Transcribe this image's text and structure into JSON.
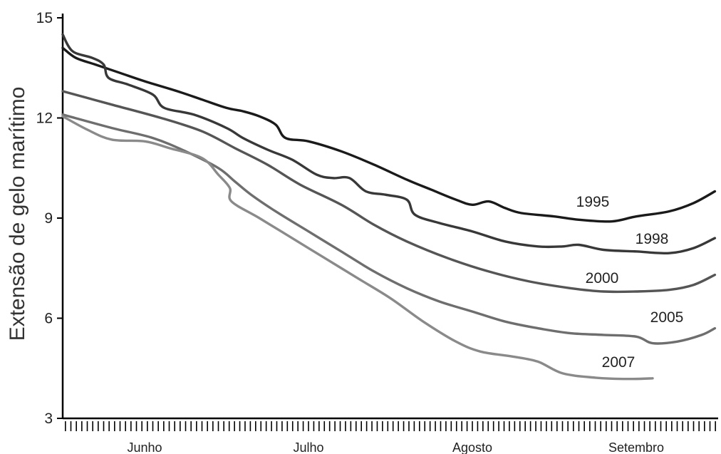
{
  "chart_data": {
    "type": "line",
    "title": "",
    "xlabel": "",
    "ylabel": "Extensão de gelo marítimo",
    "ylim": [
      3,
      15
    ],
    "yticks": [
      3,
      6,
      9,
      12,
      15
    ],
    "xlim": [
      0,
      4
    ],
    "x_categories": [
      "Junho",
      "Julho",
      "Agosto",
      "Setembro"
    ],
    "grid": false,
    "series": [
      {
        "name": "1995",
        "color": "#1a1a1a",
        "points": [
          [
            0.0,
            14.1
          ],
          [
            0.08,
            13.8
          ],
          [
            0.2,
            13.6
          ],
          [
            0.35,
            13.35
          ],
          [
            0.5,
            13.1
          ],
          [
            0.7,
            12.8
          ],
          [
            0.85,
            12.55
          ],
          [
            1.0,
            12.3
          ],
          [
            1.1,
            12.2
          ],
          [
            1.2,
            12.05
          ],
          [
            1.3,
            11.8
          ],
          [
            1.36,
            11.4
          ],
          [
            1.5,
            11.3
          ],
          [
            1.7,
            11.0
          ],
          [
            1.9,
            10.6
          ],
          [
            2.1,
            10.15
          ],
          [
            2.25,
            9.85
          ],
          [
            2.4,
            9.55
          ],
          [
            2.5,
            9.4
          ],
          [
            2.6,
            9.5
          ],
          [
            2.7,
            9.3
          ],
          [
            2.8,
            9.15
          ],
          [
            3.0,
            9.05
          ],
          [
            3.15,
            8.95
          ],
          [
            3.35,
            8.9
          ],
          [
            3.5,
            9.05
          ],
          [
            3.7,
            9.2
          ],
          [
            3.85,
            9.45
          ],
          [
            3.98,
            9.8
          ]
        ]
      },
      {
        "name": "1998",
        "color": "#383838",
        "points": [
          [
            0.0,
            14.5
          ],
          [
            0.06,
            14.0
          ],
          [
            0.18,
            13.8
          ],
          [
            0.25,
            13.6
          ],
          [
            0.28,
            13.2
          ],
          [
            0.4,
            13.0
          ],
          [
            0.55,
            12.7
          ],
          [
            0.62,
            12.3
          ],
          [
            0.8,
            12.1
          ],
          [
            1.0,
            11.7
          ],
          [
            1.1,
            11.4
          ],
          [
            1.25,
            11.05
          ],
          [
            1.4,
            10.75
          ],
          [
            1.55,
            10.3
          ],
          [
            1.65,
            10.2
          ],
          [
            1.75,
            10.2
          ],
          [
            1.85,
            9.8
          ],
          [
            1.97,
            9.7
          ],
          [
            2.1,
            9.55
          ],
          [
            2.15,
            9.1
          ],
          [
            2.3,
            8.85
          ],
          [
            2.5,
            8.6
          ],
          [
            2.7,
            8.3
          ],
          [
            2.9,
            8.15
          ],
          [
            3.05,
            8.15
          ],
          [
            3.15,
            8.2
          ],
          [
            3.3,
            8.05
          ],
          [
            3.5,
            8.0
          ],
          [
            3.7,
            7.95
          ],
          [
            3.85,
            8.1
          ],
          [
            3.98,
            8.4
          ]
        ]
      },
      {
        "name": "2000",
        "color": "#555555",
        "points": [
          [
            0.0,
            12.8
          ],
          [
            0.3,
            12.4
          ],
          [
            0.6,
            12.0
          ],
          [
            0.85,
            11.6
          ],
          [
            1.05,
            11.1
          ],
          [
            1.25,
            10.6
          ],
          [
            1.45,
            10.0
          ],
          [
            1.7,
            9.4
          ],
          [
            1.9,
            8.8
          ],
          [
            2.1,
            8.3
          ],
          [
            2.35,
            7.8
          ],
          [
            2.6,
            7.4
          ],
          [
            2.85,
            7.1
          ],
          [
            3.1,
            6.9
          ],
          [
            3.3,
            6.8
          ],
          [
            3.5,
            6.8
          ],
          [
            3.7,
            6.85
          ],
          [
            3.85,
            7.0
          ],
          [
            3.98,
            7.3
          ]
        ]
      },
      {
        "name": "2005",
        "color": "#6e6e6e",
        "points": [
          [
            0.0,
            12.1
          ],
          [
            0.3,
            11.7
          ],
          [
            0.55,
            11.4
          ],
          [
            0.75,
            11.0
          ],
          [
            0.95,
            10.5
          ],
          [
            1.05,
            10.1
          ],
          [
            1.15,
            9.7
          ],
          [
            1.3,
            9.2
          ],
          [
            1.5,
            8.6
          ],
          [
            1.7,
            8.0
          ],
          [
            1.9,
            7.4
          ],
          [
            2.1,
            6.9
          ],
          [
            2.3,
            6.5
          ],
          [
            2.5,
            6.2
          ],
          [
            2.7,
            5.9
          ],
          [
            2.9,
            5.7
          ],
          [
            3.1,
            5.55
          ],
          [
            3.3,
            5.5
          ],
          [
            3.5,
            5.45
          ],
          [
            3.6,
            5.25
          ],
          [
            3.75,
            5.3
          ],
          [
            3.9,
            5.5
          ],
          [
            3.98,
            5.7
          ]
        ]
      },
      {
        "name": "2007",
        "color": "#8a8a8a",
        "points": [
          [
            0.0,
            12.05
          ],
          [
            0.15,
            11.65
          ],
          [
            0.3,
            11.35
          ],
          [
            0.5,
            11.3
          ],
          [
            0.65,
            11.1
          ],
          [
            0.85,
            10.8
          ],
          [
            0.95,
            10.3
          ],
          [
            1.02,
            9.9
          ],
          [
            1.03,
            9.5
          ],
          [
            1.2,
            9.0
          ],
          [
            1.4,
            8.4
          ],
          [
            1.6,
            7.8
          ],
          [
            1.8,
            7.2
          ],
          [
            2.0,
            6.6
          ],
          [
            2.2,
            5.9
          ],
          [
            2.4,
            5.3
          ],
          [
            2.55,
            5.0
          ],
          [
            2.75,
            4.85
          ],
          [
            2.9,
            4.7
          ],
          [
            3.05,
            4.35
          ],
          [
            3.25,
            4.22
          ],
          [
            3.45,
            4.18
          ],
          [
            3.6,
            4.2
          ]
        ]
      }
    ]
  }
}
